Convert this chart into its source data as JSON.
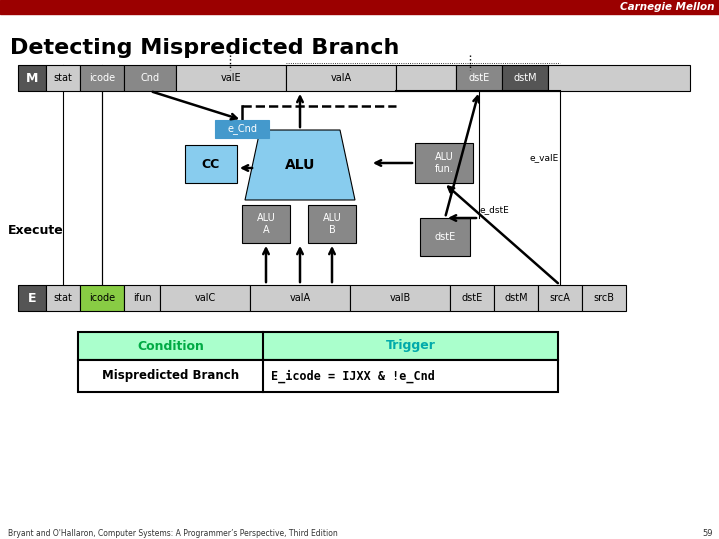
{
  "title": "Detecting Mispredicted Branch",
  "cmu_text": "Carnegie Mellon",
  "cmu_bar_color": "#9b0000",
  "background_color": "#ffffff",
  "title_color": "#000000",
  "title_fontsize": 16,
  "footer_text": "Bryant and O'Hallaron, Computer Systems: A Programmer’s Perspective, Third Edition",
  "footer_page": "59",
  "condition_label": "Condition",
  "trigger_label": "Trigger",
  "row1_condition": "Mispredicted Branch",
  "row1_trigger": "E_icode = IJXX & !e_Cnd",
  "dark_gray": "#555555",
  "mid_gray": "#888888",
  "light_gray": "#cccccc",
  "green_highlight": "#88cc44",
  "blue_highlight": "#88ccee",
  "ecnd_blue": "#4499cc",
  "table_header_bg": "#aaffcc",
  "cond_color": "#00aa44",
  "trig_color": "#00aaaa"
}
